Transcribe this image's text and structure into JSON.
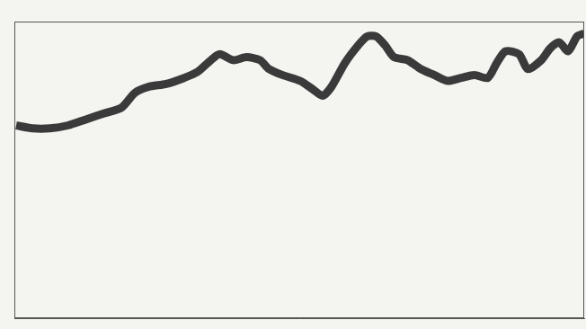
{
  "chart_data": {
    "type": "line",
    "x": [
      12,
      30,
      50,
      70,
      90,
      110,
      130,
      145,
      160,
      180,
      200,
      215,
      230,
      240,
      255,
      270,
      285,
      295,
      310,
      330,
      345,
      355,
      365,
      380,
      395,
      405,
      415,
      425,
      435,
      450,
      465,
      480,
      495,
      510,
      525,
      540,
      550,
      560,
      575,
      585,
      600,
      610,
      620,
      630,
      640,
      648
    ],
    "values": [
      65,
      64,
      64,
      65,
      67,
      69,
      71,
      76,
      78,
      79,
      81,
      83,
      87,
      89,
      87,
      88,
      87,
      84,
      82,
      80,
      77,
      75,
      78,
      86,
      92,
      95,
      95,
      92,
      88,
      87,
      84,
      82,
      80,
      81,
      82,
      81,
      86,
      90,
      89,
      84,
      87,
      91,
      93,
      90,
      95,
      96
    ],
    "color": "#3a3a3a",
    "xlim": [
      10,
      648
    ],
    "ylim": [
      0,
      100
    ],
    "grid": false,
    "tick_labels": false
  }
}
